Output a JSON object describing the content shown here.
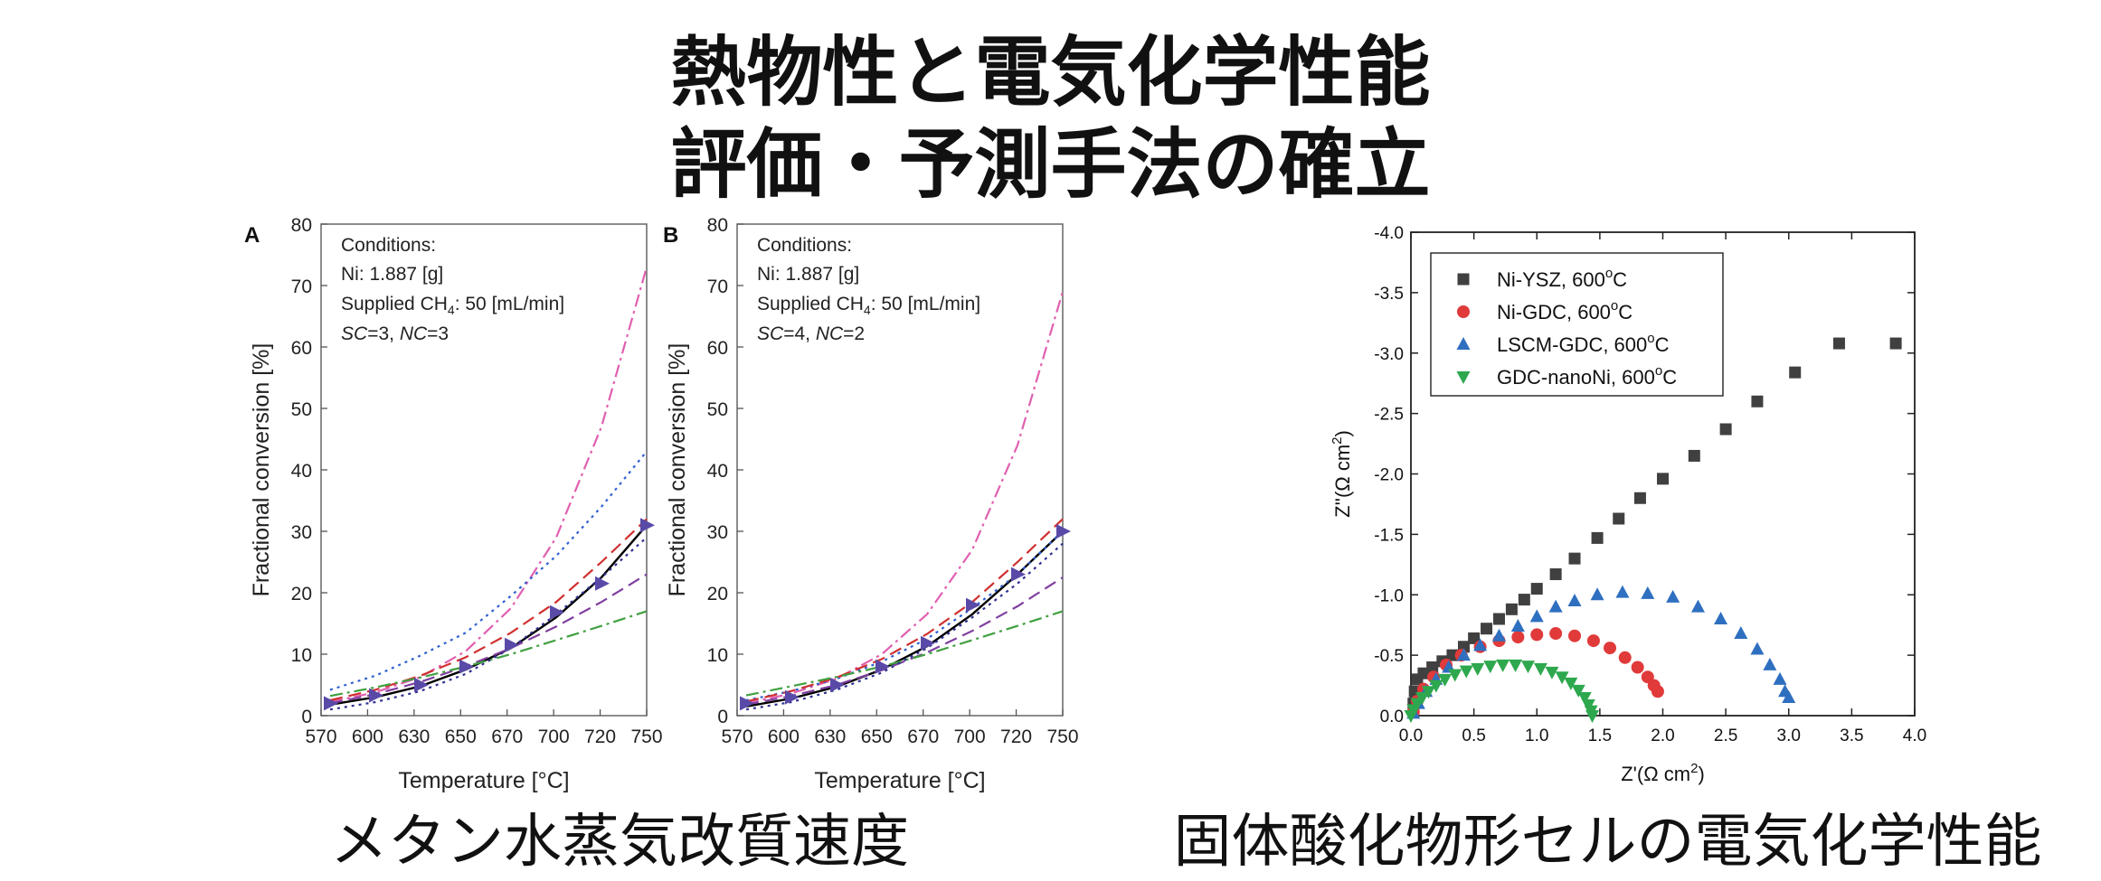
{
  "title_line1": "熱物性と電気化学性能",
  "title_line2": "評価・予測手法の確立",
  "caption_left": "メタン水蒸気改質速度",
  "caption_right": "固体酸化物形セルの電気化学性能",
  "chart_data": [
    {
      "type": "line",
      "panel_label": "A",
      "xlabel": "Temperature [°C]",
      "ylabel": "Fractional conversion [%]",
      "xlim": [
        570,
        750
      ],
      "ylim": [
        0,
        80
      ],
      "xticks": [
        570,
        600,
        630,
        650,
        670,
        700,
        720,
        750
      ],
      "yticks": [
        0,
        10,
        20,
        30,
        40,
        50,
        60,
        70,
        80
      ],
      "conditions": [
        "Conditions:",
        "Ni: 1.887 [g]",
        "Supplied CH",
        "4",
        ": 50 [mL/min]",
        "SC",
        "=3, ",
        "NC",
        "=3"
      ],
      "x": [
        575,
        600,
        625,
        650,
        675,
        700,
        725,
        750
      ],
      "series": [
        {
          "style": "solid",
          "color": "#000000",
          "values": [
            1.8,
            3.0,
            4.8,
            7.5,
            11.0,
            16.0,
            22.5,
            31.0
          ]
        },
        {
          "style": "dash-dot",
          "color": "#e060b0",
          "values": [
            2.2,
            3.8,
            6.3,
            10.5,
            17.5,
            29.0,
            47.0,
            73.0
          ]
        },
        {
          "style": "dotted",
          "color": "#3060d0",
          "values": [
            4.2,
            6.5,
            9.8,
            13.5,
            19.5,
            26.0,
            34.0,
            43.0
          ]
        },
        {
          "style": "dashed",
          "color": "#d03030",
          "values": [
            2.5,
            4.2,
            6.5,
            9.5,
            13.5,
            18.5,
            25.0,
            32.0
          ]
        },
        {
          "style": "dashed",
          "color": "#8040a0",
          "values": [
            2.0,
            3.5,
            5.5,
            8.0,
            11.0,
            14.5,
            18.5,
            23.0
          ]
        },
        {
          "style": "dash-dot",
          "color": "#40a040",
          "values": [
            3.2,
            4.6,
            6.2,
            8.0,
            10.0,
            12.3,
            14.6,
            17.0
          ]
        },
        {
          "style": "dotted",
          "color": "#303090",
          "values": [
            1.0,
            2.2,
            4.0,
            6.8,
            11.0,
            16.5,
            22.5,
            29.0
          ]
        },
        {
          "style": "markers",
          "color": "#5a4aa8",
          "values": [
            2.0,
            3.3,
            5.0,
            8.0,
            11.5,
            16.8,
            21.5,
            31.0
          ]
        }
      ]
    },
    {
      "type": "line",
      "panel_label": "B",
      "xlabel": "Temperature [°C]",
      "ylabel": "Fractional conversion [%]",
      "xlim": [
        570,
        750
      ],
      "ylim": [
        0,
        80
      ],
      "xticks": [
        570,
        600,
        630,
        650,
        670,
        700,
        720,
        750
      ],
      "yticks": [
        0,
        10,
        20,
        30,
        40,
        50,
        60,
        70,
        80
      ],
      "conditions": [
        "Conditions:",
        "Ni: 1.887 [g]",
        "Supplied CH",
        "4",
        ": 50 [mL/min]",
        "SC",
        "=4, ",
        "NC",
        "=2"
      ],
      "x": [
        575,
        600,
        625,
        650,
        675,
        700,
        725,
        750
      ],
      "series": [
        {
          "style": "solid",
          "color": "#000000",
          "values": [
            1.5,
            2.8,
            4.7,
            7.5,
            11.3,
            16.5,
            23.0,
            30.0
          ]
        },
        {
          "style": "dash-dot",
          "color": "#e060b0",
          "values": [
            2.0,
            3.6,
            6.0,
            10.0,
            16.5,
            27.0,
            44.0,
            69.0
          ]
        },
        {
          "style": "dotted",
          "color": "#3060d0",
          "values": [
            2.5,
            4.0,
            6.0,
            8.8,
            12.5,
            17.5,
            23.0,
            30.0
          ]
        },
        {
          "style": "dashed",
          "color": "#d03030",
          "values": [
            2.3,
            4.0,
            6.2,
            9.2,
            13.3,
            18.5,
            25.0,
            32.0
          ]
        },
        {
          "style": "dashed",
          "color": "#8040a0",
          "values": [
            1.8,
            3.2,
            5.0,
            7.4,
            10.3,
            13.8,
            17.8,
            22.5
          ]
        },
        {
          "style": "dash-dot",
          "color": "#40a040",
          "values": [
            3.3,
            4.8,
            6.3,
            8.0,
            10.0,
            12.3,
            14.6,
            17.0
          ]
        },
        {
          "style": "dotted",
          "color": "#303090",
          "values": [
            1.0,
            2.2,
            4.2,
            7.0,
            11.0,
            16.0,
            21.5,
            28.0
          ]
        },
        {
          "style": "markers",
          "color": "#5a4aa8",
          "values": [
            2.0,
            3.0,
            5.0,
            8.0,
            11.8,
            18.0,
            23.0,
            30.0
          ]
        }
      ]
    },
    {
      "type": "scatter",
      "xlabel": "Z'(Ω cm",
      "xlabel_sup": "2",
      "xlabel_end": ")",
      "ylabel": "Z''(Ω cm",
      "ylabel_sup": "2",
      "ylabel_end": ")",
      "xlim": [
        0,
        4.0
      ],
      "ylim": [
        0,
        -4.0
      ],
      "xticks": [
        "0.0",
        "0.5",
        "1.0",
        "1.5",
        "2.0",
        "2.5",
        "3.0",
        "3.5",
        "4.0"
      ],
      "yticks": [
        "0.0",
        "-0.5",
        "-1.0",
        "-1.5",
        "-2.0",
        "-2.5",
        "-3.0",
        "-3.5",
        "-4.0"
      ],
      "legend_position": "top-left",
      "series": [
        {
          "name": "Ni-YSZ, 600",
          "name_sup": "o",
          "name_end": "C",
          "marker": "square",
          "color": "#404040",
          "points": [
            [
              0.02,
              -0.1
            ],
            [
              0.03,
              -0.2
            ],
            [
              0.05,
              -0.3
            ],
            [
              0.1,
              -0.35
            ],
            [
              0.17,
              -0.4
            ],
            [
              0.25,
              -0.45
            ],
            [
              0.33,
              -0.5
            ],
            [
              0.42,
              -0.57
            ],
            [
              0.5,
              -0.64
            ],
            [
              0.6,
              -0.72
            ],
            [
              0.7,
              -0.8
            ],
            [
              0.8,
              -0.88
            ],
            [
              0.9,
              -0.96
            ],
            [
              1.0,
              -1.05
            ],
            [
              1.15,
              -1.17
            ],
            [
              1.3,
              -1.3
            ],
            [
              1.48,
              -1.47
            ],
            [
              1.65,
              -1.63
            ],
            [
              1.82,
              -1.8
            ],
            [
              2.0,
              -1.96
            ],
            [
              2.25,
              -2.15
            ],
            [
              2.5,
              -2.37
            ],
            [
              2.75,
              -2.6
            ],
            [
              3.05,
              -2.84
            ],
            [
              3.4,
              -3.08
            ],
            [
              3.85,
              -3.08
            ]
          ]
        },
        {
          "name": "Ni-GDC, 600",
          "name_sup": "o",
          "name_end": "C",
          "marker": "circle",
          "color": "#e03a3a",
          "points": [
            [
              0.02,
              -0.03
            ],
            [
              0.05,
              -0.12
            ],
            [
              0.1,
              -0.22
            ],
            [
              0.18,
              -0.32
            ],
            [
              0.28,
              -0.42
            ],
            [
              0.4,
              -0.5
            ],
            [
              0.55,
              -0.57
            ],
            [
              0.7,
              -0.62
            ],
            [
              0.85,
              -0.65
            ],
            [
              1.0,
              -0.67
            ],
            [
              1.15,
              -0.68
            ],
            [
              1.3,
              -0.66
            ],
            [
              1.45,
              -0.62
            ],
            [
              1.58,
              -0.56
            ],
            [
              1.7,
              -0.48
            ],
            [
              1.8,
              -0.4
            ],
            [
              1.88,
              -0.32
            ],
            [
              1.93,
              -0.25
            ],
            [
              1.96,
              -0.2
            ]
          ]
        },
        {
          "name": "LSCM-GDC, 600",
          "name_sup": "o",
          "name_end": "C",
          "marker": "triangle-up",
          "color": "#2f6fc0",
          "points": [
            [
              0.02,
              -0.02
            ],
            [
              0.06,
              -0.1
            ],
            [
              0.12,
              -0.2
            ],
            [
              0.2,
              -0.3
            ],
            [
              0.3,
              -0.4
            ],
            [
              0.42,
              -0.5
            ],
            [
              0.55,
              -0.58
            ],
            [
              0.7,
              -0.66
            ],
            [
              0.85,
              -0.74
            ],
            [
              1.0,
              -0.82
            ],
            [
              1.15,
              -0.9
            ],
            [
              1.3,
              -0.95
            ],
            [
              1.48,
              -1.0
            ],
            [
              1.68,
              -1.02
            ],
            [
              1.88,
              -1.01
            ],
            [
              2.08,
              -0.98
            ],
            [
              2.28,
              -0.9
            ],
            [
              2.46,
              -0.8
            ],
            [
              2.62,
              -0.68
            ],
            [
              2.75,
              -0.55
            ],
            [
              2.85,
              -0.42
            ],
            [
              2.93,
              -0.3
            ],
            [
              2.97,
              -0.2
            ],
            [
              3.0,
              -0.15
            ]
          ]
        },
        {
          "name": "GDC-nanoNi, 600",
          "name_sup": "o",
          "name_end": "C",
          "marker": "triangle-down",
          "color": "#2ea84e",
          "points": [
            [
              0.0,
              0.0
            ],
            [
              0.02,
              -0.05
            ],
            [
              0.05,
              -0.1
            ],
            [
              0.09,
              -0.15
            ],
            [
              0.14,
              -0.2
            ],
            [
              0.2,
              -0.25
            ],
            [
              0.27,
              -0.3
            ],
            [
              0.35,
              -0.34
            ],
            [
              0.44,
              -0.37
            ],
            [
              0.53,
              -0.39
            ],
            [
              0.63,
              -0.41
            ],
            [
              0.73,
              -0.42
            ],
            [
              0.83,
              -0.42
            ],
            [
              0.93,
              -0.41
            ],
            [
              1.03,
              -0.39
            ],
            [
              1.12,
              -0.36
            ],
            [
              1.2,
              -0.32
            ],
            [
              1.27,
              -0.27
            ],
            [
              1.33,
              -0.21
            ],
            [
              1.38,
              -0.15
            ],
            [
              1.41,
              -0.09
            ],
            [
              1.43,
              -0.04
            ],
            [
              1.44,
              0.0
            ]
          ]
        }
      ]
    }
  ]
}
